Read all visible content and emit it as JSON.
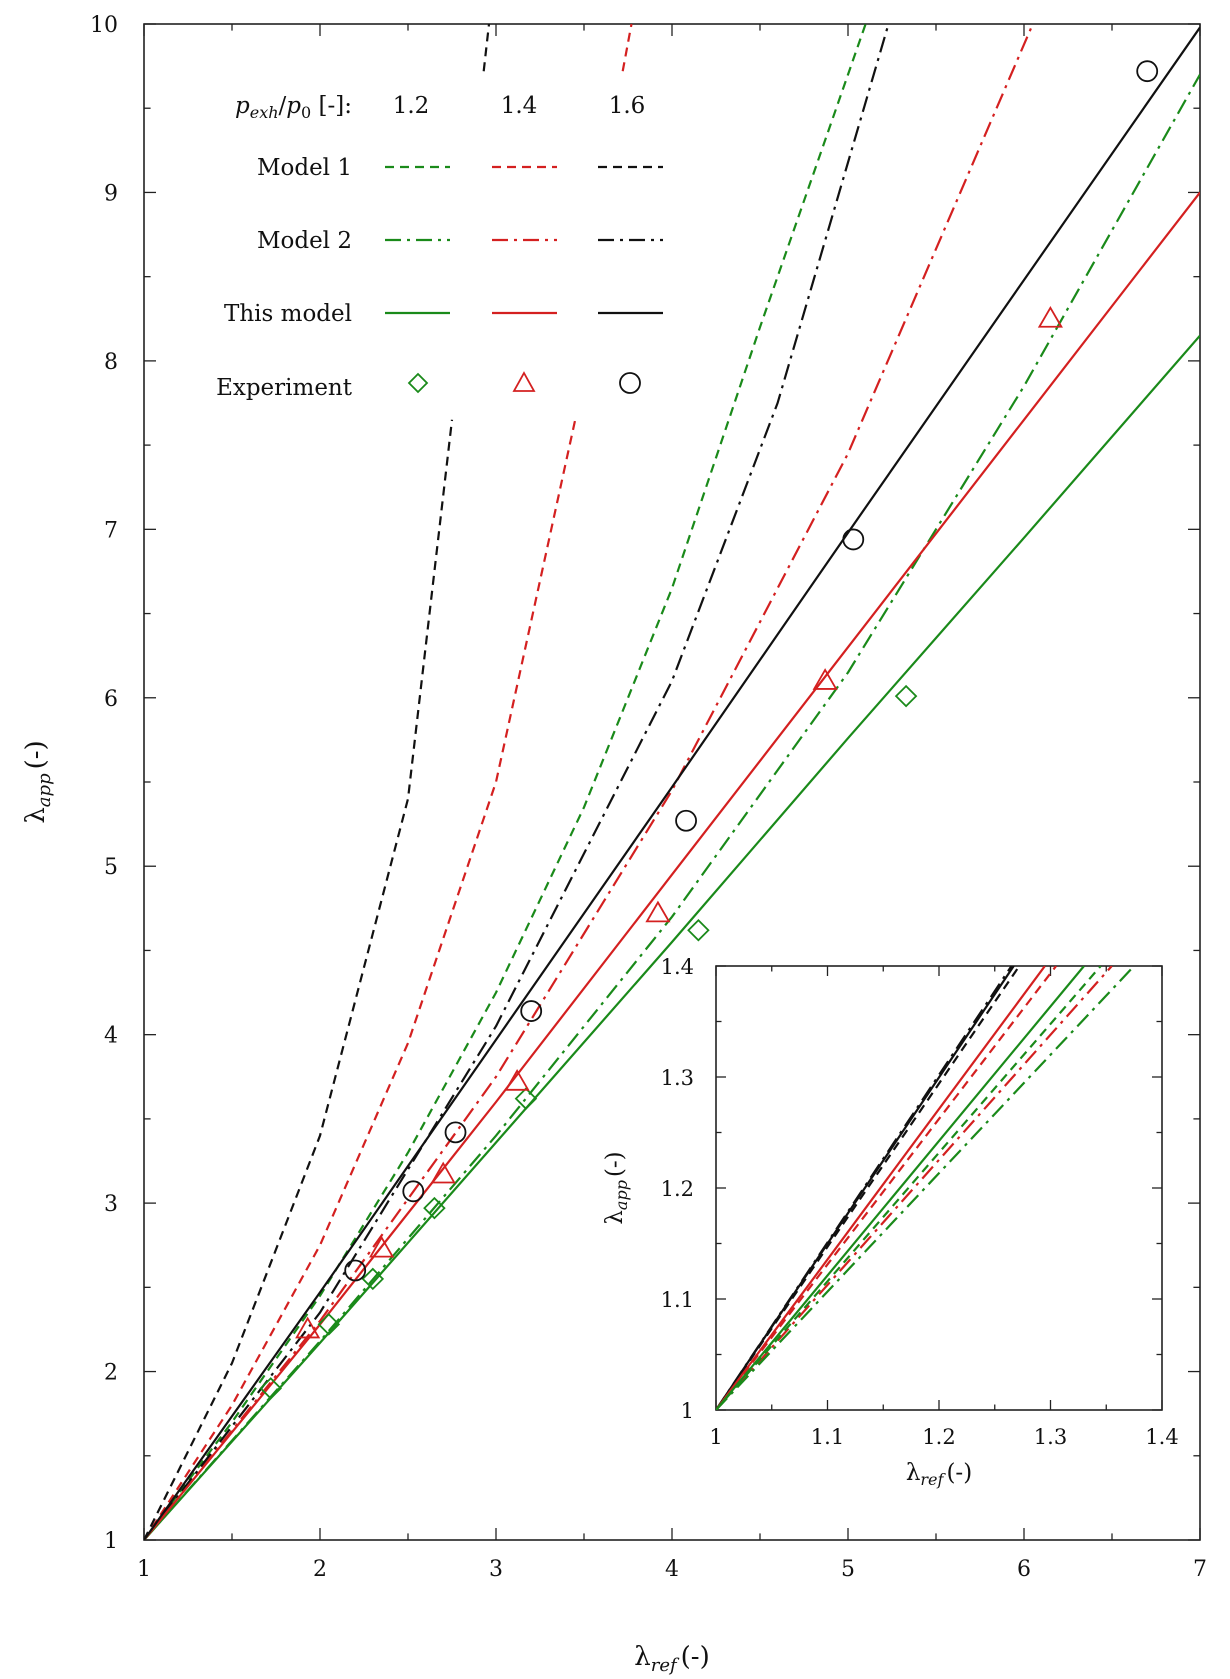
{
  "chart_data": {
    "type": "line",
    "main": {
      "xlabel": {
        "sym": "λ",
        "sub": "ref",
        "unit": "(-)"
      },
      "ylabel": {
        "sym": "λ",
        "sub": "app",
        "unit": "(-)"
      },
      "xlim": [
        1,
        7
      ],
      "ylim": [
        1,
        10
      ],
      "xticks": [
        "1",
        "2",
        "3",
        "4",
        "5",
        "6",
        "7"
      ],
      "yticks": [
        "1",
        "2",
        "3",
        "4",
        "5",
        "6",
        "7",
        "8",
        "9",
        "10"
      ],
      "legend": {
        "position": "top-left",
        "header": {
          "p1": "p",
          "p1sub": "exh",
          "slash": "/",
          "p2": "p",
          "p2sub": "0",
          "unit": " [-]:"
        },
        "columns": [
          "1.2",
          "1.4",
          "1.6"
        ],
        "rows": [
          "Model 1",
          "Model 2",
          "This model",
          "Experiment"
        ]
      },
      "series": [
        {
          "name": "Model 1 1.2",
          "model": "Model 1",
          "ratio": "1.2",
          "color": "#1a8a1a",
          "style": "dashed",
          "x": [
            1,
            1.5,
            2,
            2.5,
            3,
            3.5,
            4,
            4.5,
            5.1
          ],
          "y": [
            1,
            1.7,
            2.45,
            3.3,
            4.25,
            5.35,
            6.65,
            8.2,
            10
          ]
        },
        {
          "name": "Model 1 1.4",
          "model": "Model 1",
          "ratio": "1.4",
          "color": "#d42020",
          "style": "dashed",
          "x": [
            1,
            1.5,
            2,
            2.5,
            3,
            3.45
          ],
          "y": [
            1,
            1.8,
            2.75,
            3.95,
            5.5,
            7.65
          ]
        },
        {
          "name": "Model 1 1.4 (upper)",
          "model": "Model 1",
          "ratio": "1.4",
          "color": "#d42020",
          "style": "dashed",
          "x": [
            3.72,
            3.77
          ],
          "y": [
            9.72,
            10
          ]
        },
        {
          "name": "Model 1 1.6",
          "model": "Model 1",
          "ratio": "1.6",
          "color": "#111111",
          "style": "dashed",
          "x": [
            1,
            1.5,
            2,
            2.5,
            2.75
          ],
          "y": [
            1,
            2.05,
            3.4,
            5.4,
            7.65
          ]
        },
        {
          "name": "Model 1 1.6 (upper)",
          "model": "Model 1",
          "ratio": "1.6",
          "color": "#111111",
          "style": "dashed",
          "x": [
            2.93,
            2.96
          ],
          "y": [
            9.72,
            10
          ]
        },
        {
          "name": "Model 2 1.2",
          "model": "Model 2",
          "ratio": "1.2",
          "color": "#1a8a1a",
          "style": "dashdot",
          "x": [
            1,
            2,
            3,
            4,
            5,
            6,
            7
          ],
          "y": [
            1,
            2.18,
            3.4,
            4.7,
            6.15,
            7.85,
            9.7
          ]
        },
        {
          "name": "Model 2 1.4",
          "model": "Model 2",
          "ratio": "1.4",
          "color": "#d42020",
          "style": "dashdot",
          "x": [
            1,
            2,
            3,
            4,
            5,
            6.05
          ],
          "y": [
            1,
            2.3,
            3.75,
            5.45,
            7.45,
            10
          ]
        },
        {
          "name": "Model 2 1.6",
          "model": "Model 2",
          "ratio": "1.6",
          "color": "#111111",
          "style": "dashdot",
          "x": [
            1,
            2,
            3,
            4,
            4.6,
            5.23
          ],
          "y": [
            1,
            2.35,
            4.05,
            6.1,
            7.75,
            10
          ]
        },
        {
          "name": "This model 1.2",
          "model": "This model",
          "ratio": "1.2",
          "color": "#1a8a1a",
          "style": "solid",
          "x": [
            1,
            2,
            3,
            4,
            5,
            6,
            7
          ],
          "y": [
            1,
            2.17,
            3.36,
            4.55,
            5.76,
            6.95,
            8.15
          ]
        },
        {
          "name": "This model 1.4",
          "model": "This model",
          "ratio": "1.4",
          "color": "#d42020",
          "style": "solid",
          "x": [
            1,
            2,
            3,
            4,
            5,
            6,
            7
          ],
          "y": [
            1,
            2.28,
            3.6,
            4.95,
            6.3,
            7.65,
            9.0
          ]
        },
        {
          "name": "This model 1.6",
          "model": "This model",
          "ratio": "1.6",
          "color": "#111111",
          "style": "solid",
          "x": [
            1,
            2,
            3,
            4,
            5,
            6,
            7
          ],
          "y": [
            1,
            2.47,
            3.97,
            5.47,
            6.98,
            8.48,
            9.98
          ]
        }
      ],
      "experiment": [
        {
          "name": "Experiment 1.2",
          "ratio": "1.2",
          "marker": "diamond",
          "color": "#1a8a1a",
          "x": [
            1.72,
            2.05,
            2.3,
            2.65,
            3.17,
            4.15,
            5.33
          ],
          "y": [
            1.9,
            2.28,
            2.55,
            2.97,
            3.62,
            4.62,
            6.01
          ]
        },
        {
          "name": "Experiment 1.4",
          "ratio": "1.4",
          "marker": "triangle",
          "color": "#d42020",
          "x": [
            1.93,
            2.35,
            2.7,
            3.12,
            3.92,
            4.87,
            6.15
          ],
          "y": [
            2.25,
            2.73,
            3.17,
            3.72,
            4.72,
            6.1,
            8.25
          ]
        },
        {
          "name": "Experiment 1.6",
          "ratio": "1.6",
          "marker": "circle",
          "color": "#111111",
          "x": [
            2.2,
            2.53,
            2.77,
            3.2,
            4.08,
            5.03,
            6.7
          ],
          "y": [
            2.6,
            3.07,
            3.42,
            4.14,
            5.27,
            6.94,
            9.72
          ]
        }
      ]
    },
    "inset": {
      "xlabel": {
        "sym": "λ",
        "sub": "ref",
        "unit": "(-)"
      },
      "ylabel": {
        "sym": "λ",
        "sub": "app",
        "unit": "(-)"
      },
      "xlim": [
        1,
        1.4
      ],
      "ylim": [
        1,
        1.4
      ],
      "xticks": [
        "1",
        "1.1",
        "1.2",
        "1.3",
        "1.4"
      ],
      "yticks": [
        "1",
        "1.1",
        "1.2",
        "1.3",
        "1.4"
      ],
      "series": [
        {
          "name": "This model 1.6",
          "color": "#111111",
          "style": "solid",
          "x": [
            1,
            1.267
          ],
          "y": [
            1,
            1.4
          ]
        },
        {
          "name": "Model 1 1.6",
          "color": "#111111",
          "style": "dashed",
          "x": [
            1,
            1.272
          ],
          "y": [
            1,
            1.4
          ]
        },
        {
          "name": "Model 2 1.6",
          "color": "#111111",
          "style": "dashdot",
          "x": [
            1,
            1.265
          ],
          "y": [
            1,
            1.4
          ]
        },
        {
          "name": "This model 1.4",
          "color": "#d42020",
          "style": "solid",
          "x": [
            1,
            1.295
          ],
          "y": [
            1,
            1.4
          ]
        },
        {
          "name": "Model 1 1.4",
          "color": "#d42020",
          "style": "dashed",
          "x": [
            1,
            1.305
          ],
          "y": [
            1,
            1.4
          ]
        },
        {
          "name": "Model 2 1.4",
          "color": "#d42020",
          "style": "dashdot",
          "x": [
            1,
            1.355
          ],
          "y": [
            1,
            1.4
          ]
        },
        {
          "name": "This model 1.2",
          "color": "#1a8a1a",
          "style": "solid",
          "x": [
            1,
            1.33
          ],
          "y": [
            1,
            1.4
          ]
        },
        {
          "name": "Model 1 1.2",
          "color": "#1a8a1a",
          "style": "dashed",
          "x": [
            1,
            1.345
          ],
          "y": [
            1,
            1.4
          ]
        },
        {
          "name": "Model 2 1.2",
          "color": "#1a8a1a",
          "style": "dashdot",
          "x": [
            1,
            1.375
          ],
          "y": [
            1,
            1.4
          ]
        }
      ]
    }
  }
}
